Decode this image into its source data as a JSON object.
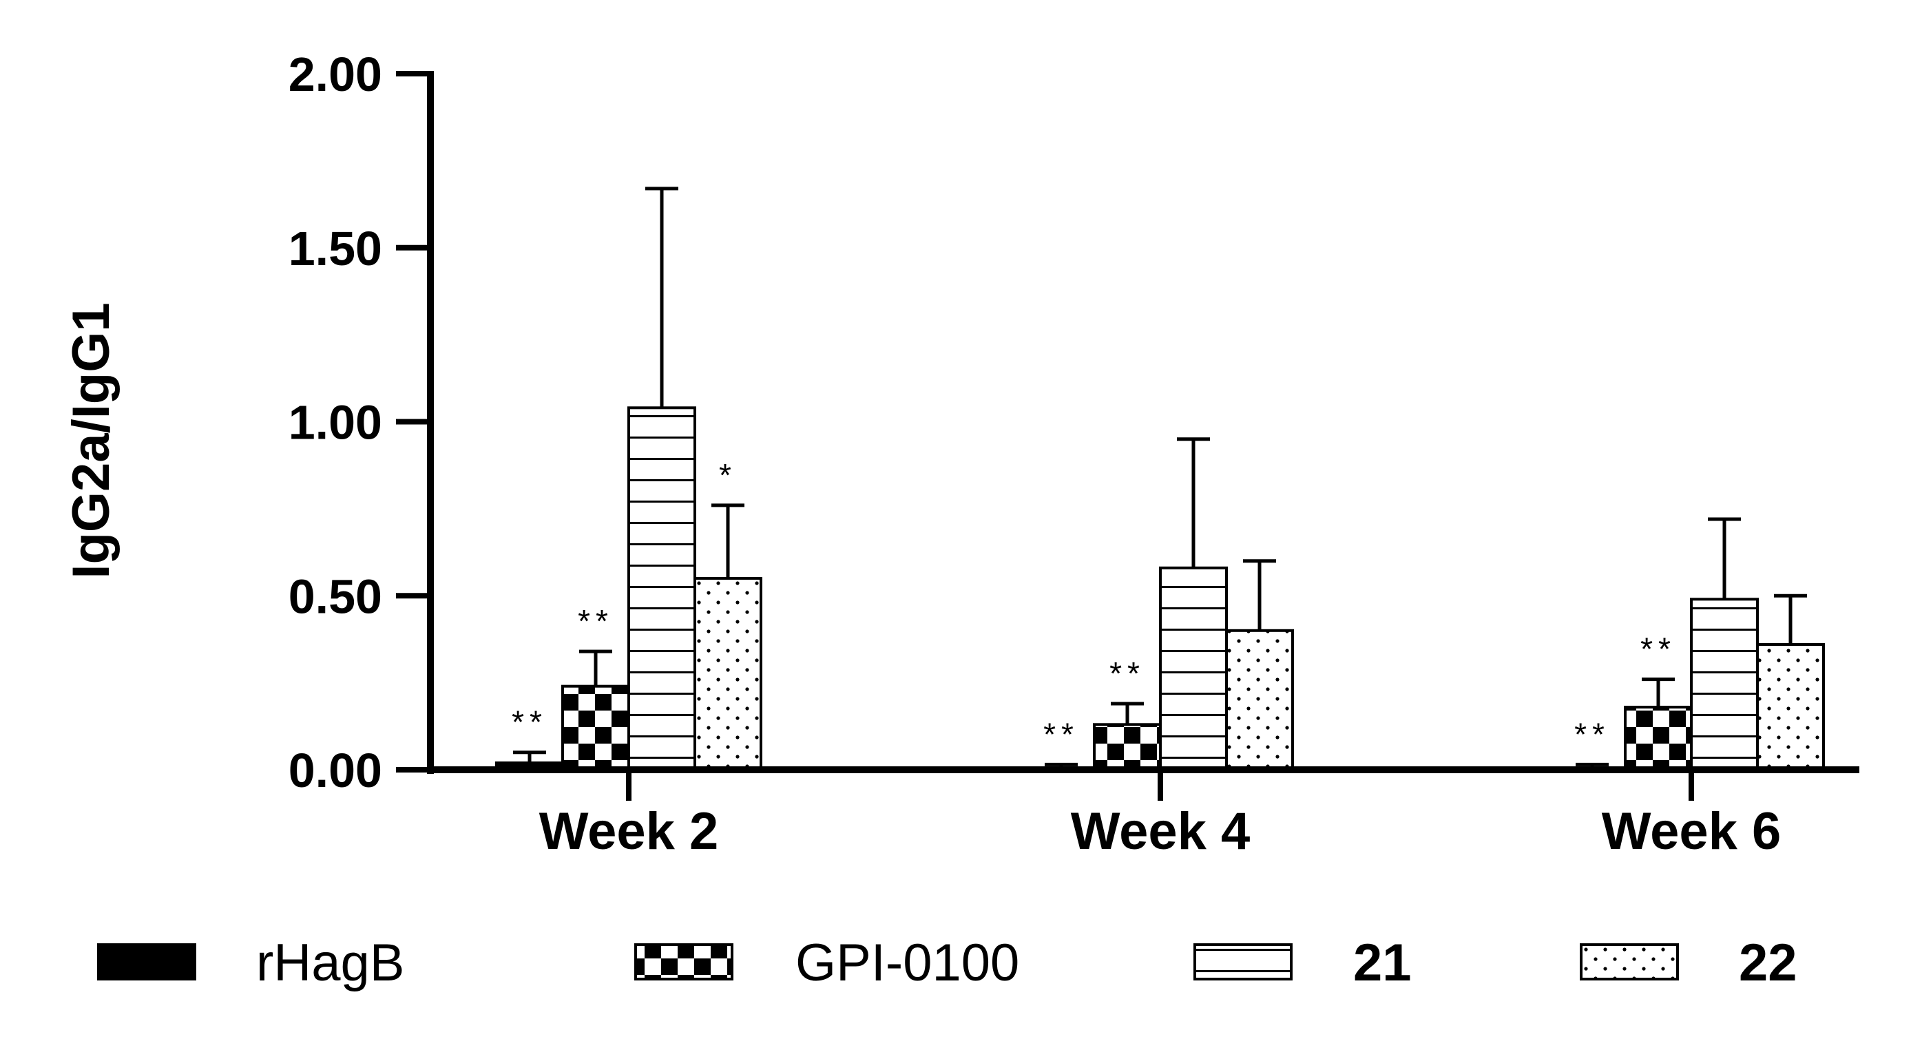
{
  "chart_data": {
    "type": "bar",
    "title": "",
    "xlabel": "",
    "ylabel": "IgG2a/IgG1",
    "ylim": [
      0,
      2.0
    ],
    "yticks": [
      "0.00",
      "0.50",
      "1.00",
      "1.50",
      "2.00"
    ],
    "ytick_values": [
      0,
      0.5,
      1.0,
      1.5,
      2.0
    ],
    "categories": [
      "Week 2",
      "Week 4",
      "Week 6"
    ],
    "series": [
      {
        "name": "rHagB",
        "pattern": "solid",
        "bold": false,
        "values": [
          0.02,
          0.005,
          0.005
        ],
        "errors": [
          0.03,
          0.01,
          0.01
        ],
        "annotations": [
          "**",
          "**",
          "**"
        ]
      },
      {
        "name": "GPI-0100",
        "pattern": "checker",
        "bold": false,
        "values": [
          0.24,
          0.13,
          0.18
        ],
        "errors": [
          0.1,
          0.06,
          0.08
        ],
        "annotations": [
          "**",
          "**",
          "**"
        ]
      },
      {
        "name": "21",
        "pattern": "hlines",
        "bold": true,
        "values": [
          1.04,
          0.58,
          0.49
        ],
        "errors": [
          0.63,
          0.37,
          0.23
        ],
        "annotations": [
          "",
          "",
          ""
        ]
      },
      {
        "name": "22",
        "pattern": "dots",
        "bold": true,
        "values": [
          0.55,
          0.4,
          0.36
        ],
        "errors": [
          0.21,
          0.2,
          0.14
        ],
        "annotations": [
          "*",
          "",
          ""
        ]
      }
    ]
  },
  "colors": {
    "ink": "#000000",
    "background": "#ffffff"
  }
}
